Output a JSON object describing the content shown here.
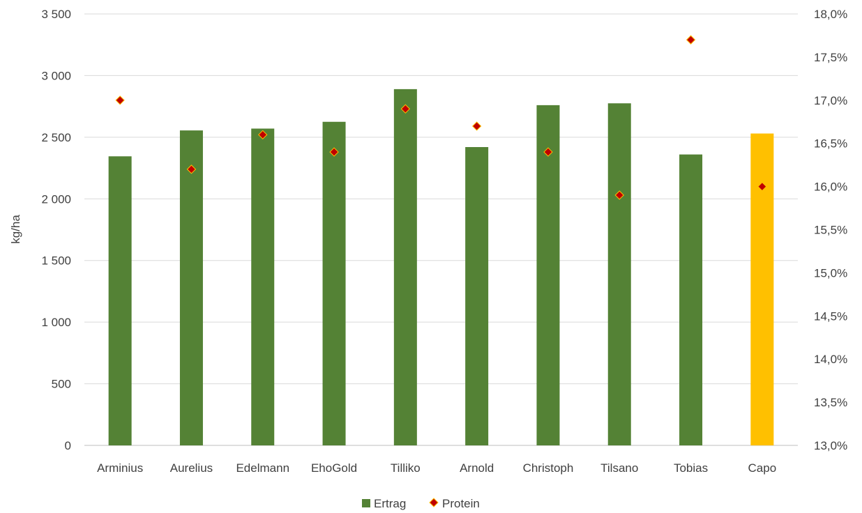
{
  "chart_data": {
    "type": "bar",
    "categories": [
      "Arminius",
      "Aurelius",
      "Edelmann",
      "EhoGold",
      "Tilliko",
      "Arnold",
      "Christoph",
      "Tilsano",
      "Tobias",
      "Capo"
    ],
    "series": [
      {
        "name": "Ertrag",
        "type": "bar",
        "axis": "left",
        "values": [
          2345,
          2555,
          2570,
          2625,
          2890,
          2420,
          2760,
          2775,
          2360,
          2530
        ],
        "colors": [
          "#548235",
          "#548235",
          "#548235",
          "#548235",
          "#548235",
          "#548235",
          "#548235",
          "#548235",
          "#548235",
          "#FFC000"
        ]
      },
      {
        "name": "Protein",
        "type": "scatter",
        "axis": "right",
        "values": [
          17.0,
          16.2,
          16.6,
          16.4,
          16.9,
          16.7,
          16.4,
          15.9,
          17.7,
          16.0
        ],
        "marker": "diamond",
        "fill": "#C00000",
        "stroke": "#FFC000"
      }
    ],
    "ylabel": "kg/ha",
    "ylim": [
      0,
      3500
    ],
    "y_ticks": [
      "0",
      "500",
      "1 000",
      "1 500",
      "2 000",
      "2 500",
      "3 000",
      "3 500"
    ],
    "y2lim": [
      13.0,
      18.0
    ],
    "y2_ticks": [
      "13,0%",
      "13,5%",
      "14,0%",
      "14,5%",
      "15,0%",
      "15,5%",
      "16,0%",
      "16,5%",
      "17,0%",
      "17,5%",
      "18,0%"
    ],
    "grid": true,
    "legend": "bottom-center"
  }
}
